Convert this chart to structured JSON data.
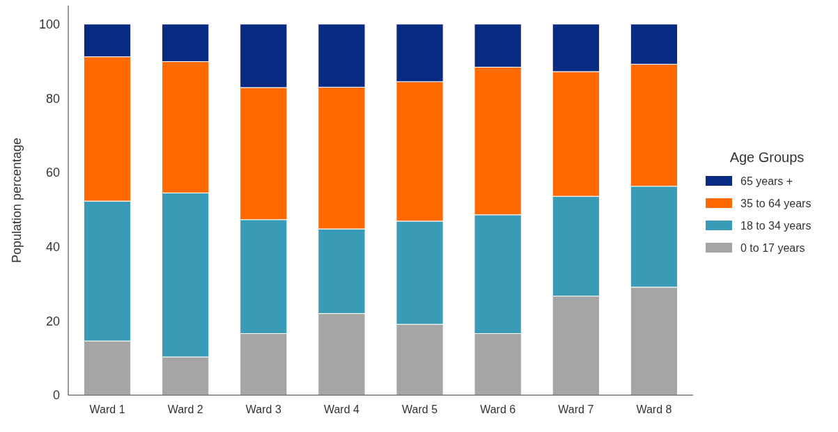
{
  "chart_data": {
    "type": "bar",
    "stacked": true,
    "ylabel": "Population percentage",
    "legend_title": "Age Groups",
    "legend": "right",
    "categories": [
      "Ward 1",
      "Ward 2",
      "Ward 3",
      "Ward 4",
      "Ward 5",
      "Ward 6",
      "Ward 7",
      "Ward 8"
    ],
    "ylim": [
      0,
      105
    ],
    "yticks": [
      0,
      20,
      40,
      60,
      80,
      100
    ],
    "grid": false,
    "series": [
      {
        "name": "0 to 17 years",
        "color": "#a5a5a5",
        "values": [
          14.6,
          10.3,
          16.6,
          22.0,
          19.1,
          16.6,
          26.7,
          29.1
        ]
      },
      {
        "name": "18 to 34 years",
        "color": "#3a9bb7",
        "values": [
          37.7,
          44.2,
          30.7,
          22.8,
          27.8,
          32.0,
          26.9,
          27.2
        ]
      },
      {
        "name": "35 to 64 years",
        "color": "#ff6a00",
        "values": [
          38.9,
          35.4,
          35.6,
          38.2,
          37.6,
          39.8,
          33.6,
          32.9
        ]
      },
      {
        "name": "65 years +",
        "color": "#082a80",
        "values": [
          8.8,
          10.1,
          17.1,
          17.0,
          15.5,
          11.6,
          12.8,
          10.8
        ]
      }
    ]
  }
}
